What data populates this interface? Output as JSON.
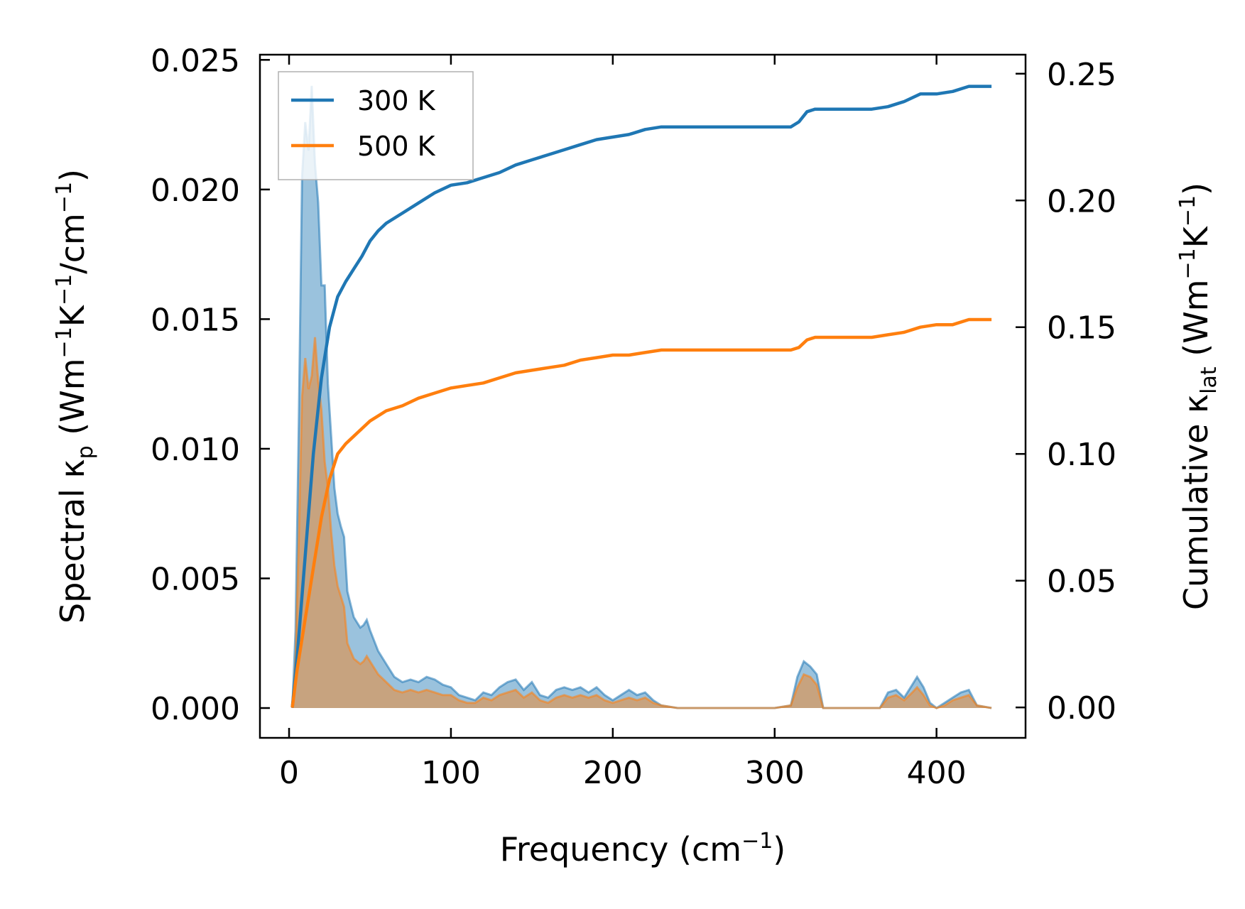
{
  "chart_data": {
    "type": "line",
    "xlabel": {
      "base": "Frequency (cm",
      "sup": "−1",
      "tail": ")"
    },
    "ylabel_left": {
      "t1": "Spectral κ",
      "sub": "p",
      "t2": " (Wm",
      "sup1": "−1",
      "t3": "K",
      "sup2": "−1",
      "t4": "/cm",
      "sup3": "−1",
      "t5": ")"
    },
    "ylabel_right": {
      "t1": "Cumulative κ",
      "sub": "lat",
      "t2": " (Wm",
      "sup1": "−1",
      "t3": "K",
      "sup2": "−1",
      "t4": ")"
    },
    "xlim": [
      -18,
      455
    ],
    "ylim_left": [
      -0.00115,
      0.0252
    ],
    "ylim_right": [
      -0.012,
      0.2575
    ],
    "xticks": [
      0,
      100,
      200,
      300,
      400
    ],
    "xtick_labels": [
      "0",
      "100",
      "200",
      "300",
      "400"
    ],
    "yticks_left": [
      0,
      0.005,
      0.01,
      0.015,
      0.02,
      0.025
    ],
    "ytick_labels_left": [
      "0.000",
      "0.005",
      "0.010",
      "0.015",
      "0.020",
      "0.025"
    ],
    "yticks_right": [
      0,
      0.05,
      0.1,
      0.15,
      0.2,
      0.25
    ],
    "ytick_labels_right": [
      "0.00",
      "0.05",
      "0.10",
      "0.15",
      "0.20",
      "0.25"
    ],
    "grid": false,
    "legend_position": "upper-left",
    "series": [
      {
        "name": "300 K",
        "color": "#1f77b4",
        "spectral": [
          [
            2,
            0
          ],
          [
            4,
            0.003
          ],
          [
            6,
            0.011
          ],
          [
            8,
            0.0205
          ],
          [
            10,
            0.0226
          ],
          [
            12,
            0.0215
          ],
          [
            14,
            0.024
          ],
          [
            16,
            0.021
          ],
          [
            18,
            0.0195
          ],
          [
            20,
            0.0163
          ],
          [
            22,
            0.0163
          ],
          [
            24,
            0.0125
          ],
          [
            26,
            0.0105
          ],
          [
            28,
            0.0085
          ],
          [
            30,
            0.0075
          ],
          [
            32,
            0.007
          ],
          [
            34,
            0.0066
          ],
          [
            36,
            0.0045
          ],
          [
            38,
            0.004
          ],
          [
            40,
            0.0035
          ],
          [
            42,
            0.0033
          ],
          [
            44,
            0.0031
          ],
          [
            46,
            0.0032
          ],
          [
            48,
            0.0034
          ],
          [
            50,
            0.003
          ],
          [
            55,
            0.0022
          ],
          [
            60,
            0.0017
          ],
          [
            65,
            0.0012
          ],
          [
            70,
            0.001
          ],
          [
            75,
            0.0011
          ],
          [
            80,
            0.001
          ],
          [
            85,
            0.0012
          ],
          [
            90,
            0.0011
          ],
          [
            95,
            0.0009
          ],
          [
            100,
            0.0008
          ],
          [
            105,
            0.0005
          ],
          [
            110,
            0.0004
          ],
          [
            115,
            0.0003
          ],
          [
            120,
            0.0006
          ],
          [
            125,
            0.0005
          ],
          [
            130,
            0.0008
          ],
          [
            135,
            0.001
          ],
          [
            140,
            0.0011
          ],
          [
            145,
            0.0007
          ],
          [
            150,
            0.001
          ],
          [
            155,
            0.0005
          ],
          [
            160,
            0.0004
          ],
          [
            165,
            0.0007
          ],
          [
            170,
            0.0008
          ],
          [
            175,
            0.0007
          ],
          [
            180,
            0.0008
          ],
          [
            185,
            0.0006
          ],
          [
            190,
            0.0008
          ],
          [
            195,
            0.0005
          ],
          [
            200,
            0.0003
          ],
          [
            205,
            0.0005
          ],
          [
            210,
            0.0007
          ],
          [
            215,
            0.0005
          ],
          [
            220,
            0.0006
          ],
          [
            225,
            0.0003
          ],
          [
            230,
            0.0001
          ],
          [
            240,
            0
          ],
          [
            300,
            0
          ],
          [
            310,
            0.0001
          ],
          [
            314,
            0.0012
          ],
          [
            318,
            0.0018
          ],
          [
            322,
            0.0016
          ],
          [
            326,
            0.0013
          ],
          [
            330,
            0
          ],
          [
            360,
            0
          ],
          [
            365,
            0
          ],
          [
            370,
            0.0006
          ],
          [
            375,
            0.0007
          ],
          [
            380,
            0.0004
          ],
          [
            385,
            0.0009
          ],
          [
            388,
            0.0012
          ],
          [
            392,
            0.0008
          ],
          [
            396,
            0.0002
          ],
          [
            400,
            0
          ],
          [
            405,
            0.0002
          ],
          [
            410,
            0.0004
          ],
          [
            415,
            0.0006
          ],
          [
            420,
            0.0007
          ],
          [
            425,
            0.0001
          ],
          [
            434,
            0
          ]
        ],
        "cumulative": [
          [
            2,
            0
          ],
          [
            5,
            0.02
          ],
          [
            10,
            0.06
          ],
          [
            15,
            0.1
          ],
          [
            20,
            0.13
          ],
          [
            25,
            0.15
          ],
          [
            30,
            0.162
          ],
          [
            35,
            0.168
          ],
          [
            40,
            0.173
          ],
          [
            45,
            0.178
          ],
          [
            50,
            0.184
          ],
          [
            55,
            0.188
          ],
          [
            60,
            0.191
          ],
          [
            70,
            0.195
          ],
          [
            80,
            0.199
          ],
          [
            90,
            0.203
          ],
          [
            100,
            0.206
          ],
          [
            110,
            0.207
          ],
          [
            115,
            0.208
          ],
          [
            120,
            0.209
          ],
          [
            130,
            0.211
          ],
          [
            140,
            0.214
          ],
          [
            150,
            0.216
          ],
          [
            160,
            0.218
          ],
          [
            170,
            0.22
          ],
          [
            180,
            0.222
          ],
          [
            190,
            0.224
          ],
          [
            200,
            0.225
          ],
          [
            210,
            0.226
          ],
          [
            220,
            0.228
          ],
          [
            230,
            0.229
          ],
          [
            300,
            0.229
          ],
          [
            310,
            0.229
          ],
          [
            315,
            0.231
          ],
          [
            320,
            0.235
          ],
          [
            325,
            0.236
          ],
          [
            360,
            0.236
          ],
          [
            370,
            0.237
          ],
          [
            380,
            0.239
          ],
          [
            390,
            0.242
          ],
          [
            400,
            0.242
          ],
          [
            410,
            0.243
          ],
          [
            420,
            0.245
          ],
          [
            434,
            0.245
          ]
        ]
      },
      {
        "name": "500 K",
        "color": "#ff7f0e",
        "spectral": [
          [
            2,
            0
          ],
          [
            4,
            0.0018
          ],
          [
            6,
            0.0065
          ],
          [
            8,
            0.012
          ],
          [
            10,
            0.0135
          ],
          [
            12,
            0.0123
          ],
          [
            14,
            0.0128
          ],
          [
            16,
            0.0143
          ],
          [
            18,
            0.0126
          ],
          [
            20,
            0.0115
          ],
          [
            22,
            0.0095
          ],
          [
            24,
            0.0085
          ],
          [
            26,
            0.0068
          ],
          [
            28,
            0.0055
          ],
          [
            30,
            0.0047
          ],
          [
            32,
            0.0043
          ],
          [
            34,
            0.0039
          ],
          [
            36,
            0.0025
          ],
          [
            38,
            0.0022
          ],
          [
            40,
            0.0019
          ],
          [
            42,
            0.0018
          ],
          [
            44,
            0.0017
          ],
          [
            46,
            0.0018
          ],
          [
            48,
            0.002
          ],
          [
            50,
            0.0018
          ],
          [
            55,
            0.0013
          ],
          [
            60,
            0.001
          ],
          [
            65,
            0.0007
          ],
          [
            70,
            0.0006
          ],
          [
            75,
            0.0007
          ],
          [
            80,
            0.0006
          ],
          [
            85,
            0.0007
          ],
          [
            90,
            0.0006
          ],
          [
            95,
            0.0005
          ],
          [
            100,
            0.0005
          ],
          [
            105,
            0.0003
          ],
          [
            110,
            0.0002
          ],
          [
            115,
            0.0002
          ],
          [
            120,
            0.0004
          ],
          [
            125,
            0.0003
          ],
          [
            130,
            0.0005
          ],
          [
            135,
            0.0006
          ],
          [
            140,
            0.0007
          ],
          [
            145,
            0.0004
          ],
          [
            150,
            0.0006
          ],
          [
            155,
            0.0003
          ],
          [
            160,
            0.0002
          ],
          [
            165,
            0.0004
          ],
          [
            170,
            0.0005
          ],
          [
            175,
            0.0004
          ],
          [
            180,
            0.0005
          ],
          [
            185,
            0.0004
          ],
          [
            190,
            0.0005
          ],
          [
            195,
            0.0003
          ],
          [
            200,
            0.0002
          ],
          [
            205,
            0.0003
          ],
          [
            210,
            0.0004
          ],
          [
            215,
            0.0003
          ],
          [
            220,
            0.0004
          ],
          [
            225,
            0.0002
          ],
          [
            230,
            0.0001
          ],
          [
            240,
            0
          ],
          [
            300,
            0
          ],
          [
            310,
            0.0001
          ],
          [
            314,
            0.0008
          ],
          [
            318,
            0.0013
          ],
          [
            322,
            0.0012
          ],
          [
            326,
            0.0009
          ],
          [
            330,
            0
          ],
          [
            360,
            0
          ],
          [
            365,
            0
          ],
          [
            370,
            0.0004
          ],
          [
            375,
            0.0005
          ],
          [
            380,
            0.0003
          ],
          [
            385,
            0.0006
          ],
          [
            388,
            0.0008
          ],
          [
            392,
            0.0005
          ],
          [
            396,
            0.0001
          ],
          [
            400,
            0
          ],
          [
            405,
            0.0001
          ],
          [
            410,
            0.0003
          ],
          [
            415,
            0.0004
          ],
          [
            420,
            0.0005
          ],
          [
            425,
            0.0001
          ],
          [
            434,
            0
          ]
        ],
        "cumulative": [
          [
            2,
            0
          ],
          [
            5,
            0.015
          ],
          [
            10,
            0.035
          ],
          [
            15,
            0.055
          ],
          [
            20,
            0.075
          ],
          [
            25,
            0.09
          ],
          [
            30,
            0.1
          ],
          [
            35,
            0.104
          ],
          [
            40,
            0.107
          ],
          [
            45,
            0.11
          ],
          [
            50,
            0.113
          ],
          [
            55,
            0.115
          ],
          [
            60,
            0.117
          ],
          [
            70,
            0.119
          ],
          [
            80,
            0.122
          ],
          [
            90,
            0.124
          ],
          [
            100,
            0.126
          ],
          [
            110,
            0.127
          ],
          [
            120,
            0.128
          ],
          [
            130,
            0.13
          ],
          [
            140,
            0.132
          ],
          [
            150,
            0.133
          ],
          [
            160,
            0.134
          ],
          [
            170,
            0.135
          ],
          [
            180,
            0.137
          ],
          [
            190,
            0.138
          ],
          [
            200,
            0.139
          ],
          [
            210,
            0.139
          ],
          [
            220,
            0.14
          ],
          [
            230,
            0.141
          ],
          [
            300,
            0.141
          ],
          [
            310,
            0.141
          ],
          [
            315,
            0.142
          ],
          [
            320,
            0.145
          ],
          [
            325,
            0.146
          ],
          [
            360,
            0.146
          ],
          [
            370,
            0.147
          ],
          [
            380,
            0.148
          ],
          [
            390,
            0.15
          ],
          [
            400,
            0.151
          ],
          [
            410,
            0.151
          ],
          [
            420,
            0.153
          ],
          [
            434,
            0.153
          ]
        ]
      }
    ]
  }
}
